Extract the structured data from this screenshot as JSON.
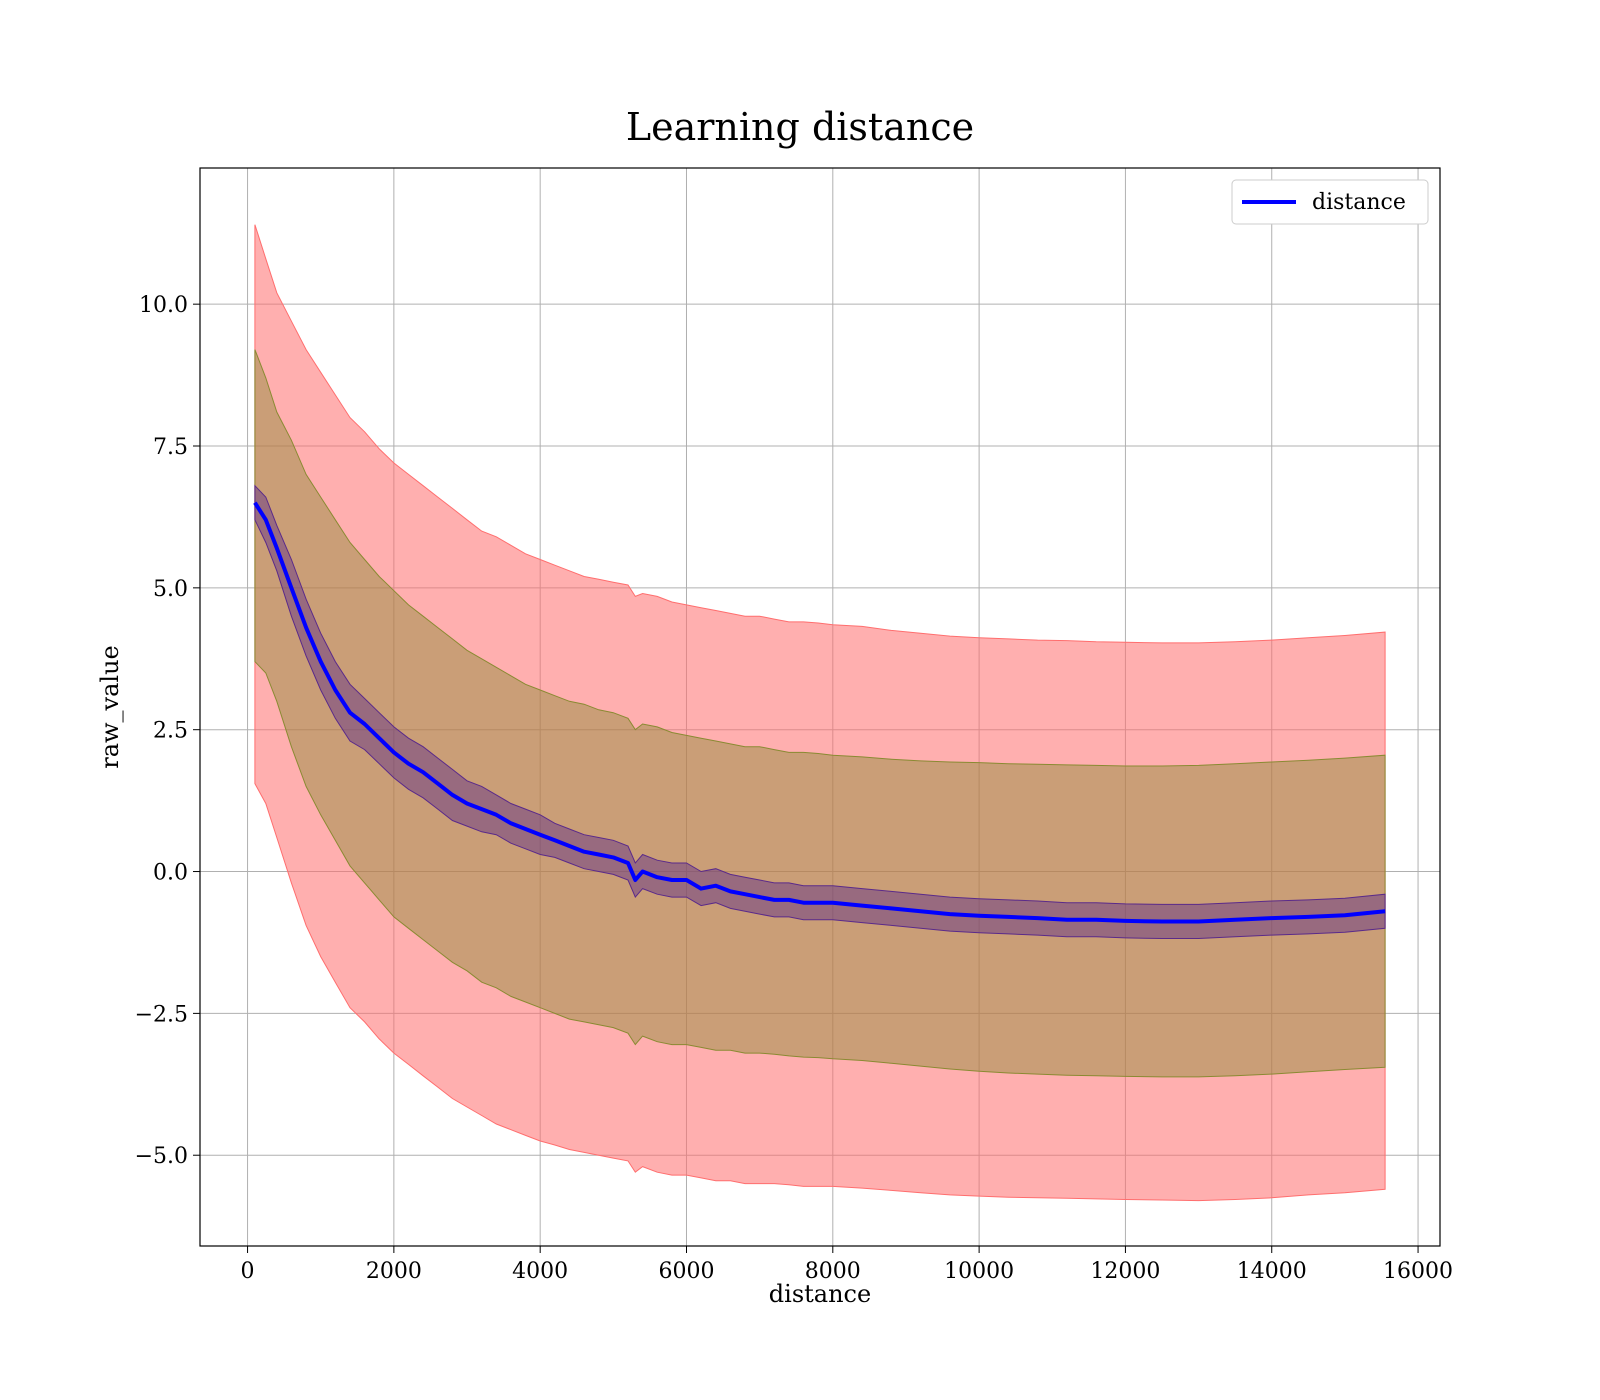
{
  "chart_data": {
    "type": "line",
    "title": "Learning distance",
    "xlabel": "distance",
    "ylabel": "raw_value",
    "xlim": [
      -650,
      16300
    ],
    "ylim": [
      -6.6,
      12.4
    ],
    "xticks": [
      0,
      2000,
      4000,
      6000,
      8000,
      10000,
      12000,
      14000,
      16000
    ],
    "xtick_labels": [
      "0",
      "2000",
      "4000",
      "6000",
      "8000",
      "10000",
      "12000",
      "14000",
      "16000"
    ],
    "yticks": [
      -5.0,
      -2.5,
      0.0,
      2.5,
      5.0,
      7.5,
      10.0
    ],
    "ytick_labels": [
      "−5.0",
      "−2.5",
      "0.0",
      "2.5",
      "5.0",
      "7.5",
      "10.0"
    ],
    "grid": true,
    "legend": {
      "position": "top-right",
      "entries": [
        "distance"
      ]
    },
    "colors": {
      "line": "#0000ff",
      "band_outer": "#ff6e6e",
      "band_middle": "#8a8a32",
      "band_inner": "#5a2a8a"
    },
    "series": [
      {
        "name": "distance",
        "x": [
          100,
          250,
          400,
          600,
          800,
          1000,
          1200,
          1400,
          1600,
          1800,
          2000,
          2200,
          2400,
          2600,
          2800,
          3000,
          3200,
          3400,
          3600,
          3800,
          4000,
          4200,
          4400,
          4600,
          4800,
          5000,
          5200,
          5300,
          5400,
          5600,
          5800,
          6000,
          6200,
          6400,
          6600,
          6800,
          7000,
          7200,
          7400,
          7600,
          7800,
          8000,
          8400,
          8800,
          9200,
          9600,
          10000,
          10400,
          10800,
          11200,
          11600,
          12000,
          12500,
          13000,
          13500,
          14000,
          14500,
          15000,
          15550
        ],
        "y": [
          6.5,
          6.2,
          5.7,
          5.0,
          4.3,
          3.7,
          3.2,
          2.8,
          2.6,
          2.35,
          2.1,
          1.9,
          1.75,
          1.55,
          1.35,
          1.2,
          1.1,
          1.0,
          0.85,
          0.75,
          0.65,
          0.55,
          0.45,
          0.35,
          0.3,
          0.25,
          0.15,
          -0.15,
          0.0,
          -0.1,
          -0.15,
          -0.15,
          -0.3,
          -0.25,
          -0.35,
          -0.4,
          -0.45,
          -0.5,
          -0.5,
          -0.55,
          -0.55,
          -0.55,
          -0.6,
          -0.65,
          -0.7,
          -0.75,
          -0.78,
          -0.8,
          -0.82,
          -0.85,
          -0.85,
          -0.87,
          -0.88,
          -0.88,
          -0.85,
          -0.82,
          -0.8,
          -0.77,
          -0.7
        ],
        "outer_upper": [
          11.4,
          10.8,
          10.2,
          9.7,
          9.2,
          8.8,
          8.4,
          8.0,
          7.75,
          7.45,
          7.2,
          7.0,
          6.8,
          6.6,
          6.4,
          6.2,
          6.0,
          5.9,
          5.75,
          5.6,
          5.5,
          5.4,
          5.3,
          5.2,
          5.15,
          5.1,
          5.05,
          4.85,
          4.9,
          4.85,
          4.75,
          4.7,
          4.65,
          4.6,
          4.55,
          4.5,
          4.5,
          4.45,
          4.4,
          4.4,
          4.38,
          4.35,
          4.32,
          4.25,
          4.2,
          4.15,
          4.12,
          4.1,
          4.08,
          4.07,
          4.05,
          4.04,
          4.03,
          4.03,
          4.05,
          4.08,
          4.12,
          4.16,
          4.22
        ],
        "outer_lower": [
          1.55,
          1.2,
          0.6,
          -0.2,
          -0.95,
          -1.5,
          -1.95,
          -2.4,
          -2.65,
          -2.95,
          -3.2,
          -3.4,
          -3.6,
          -3.8,
          -4.0,
          -4.15,
          -4.3,
          -4.45,
          -4.55,
          -4.65,
          -4.75,
          -4.82,
          -4.9,
          -4.95,
          -5.0,
          -5.05,
          -5.1,
          -5.3,
          -5.2,
          -5.3,
          -5.35,
          -5.35,
          -5.4,
          -5.45,
          -5.45,
          -5.5,
          -5.5,
          -5.5,
          -5.52,
          -5.55,
          -5.55,
          -5.55,
          -5.58,
          -5.62,
          -5.66,
          -5.7,
          -5.72,
          -5.74,
          -5.75,
          -5.76,
          -5.77,
          -5.78,
          -5.79,
          -5.8,
          -5.78,
          -5.75,
          -5.7,
          -5.66,
          -5.6
        ],
        "middle_upper": [
          9.2,
          8.7,
          8.1,
          7.6,
          7.0,
          6.6,
          6.2,
          5.8,
          5.5,
          5.2,
          4.95,
          4.7,
          4.5,
          4.3,
          4.1,
          3.9,
          3.75,
          3.6,
          3.45,
          3.3,
          3.2,
          3.1,
          3.0,
          2.95,
          2.85,
          2.8,
          2.7,
          2.5,
          2.6,
          2.55,
          2.45,
          2.4,
          2.35,
          2.3,
          2.25,
          2.2,
          2.2,
          2.15,
          2.1,
          2.1,
          2.08,
          2.05,
          2.02,
          1.98,
          1.95,
          1.93,
          1.92,
          1.9,
          1.89,
          1.88,
          1.87,
          1.86,
          1.86,
          1.87,
          1.9,
          1.93,
          1.96,
          2.0,
          2.05
        ],
        "middle_lower": [
          3.7,
          3.5,
          3.0,
          2.2,
          1.5,
          1.0,
          0.55,
          0.1,
          -0.2,
          -0.5,
          -0.8,
          -1.0,
          -1.2,
          -1.4,
          -1.6,
          -1.75,
          -1.95,
          -2.05,
          -2.2,
          -2.3,
          -2.4,
          -2.5,
          -2.6,
          -2.65,
          -2.7,
          -2.75,
          -2.85,
          -3.05,
          -2.9,
          -3.0,
          -3.05,
          -3.05,
          -3.1,
          -3.15,
          -3.15,
          -3.2,
          -3.2,
          -3.22,
          -3.25,
          -3.27,
          -3.28,
          -3.3,
          -3.33,
          -3.38,
          -3.43,
          -3.48,
          -3.52,
          -3.55,
          -3.57,
          -3.59,
          -3.6,
          -3.61,
          -3.62,
          -3.62,
          -3.6,
          -3.57,
          -3.53,
          -3.49,
          -3.45
        ],
        "inner_upper": [
          6.8,
          6.6,
          6.1,
          5.5,
          4.8,
          4.2,
          3.7,
          3.3,
          3.05,
          2.8,
          2.55,
          2.35,
          2.2,
          2.0,
          1.8,
          1.6,
          1.5,
          1.35,
          1.2,
          1.1,
          1.0,
          0.85,
          0.75,
          0.65,
          0.6,
          0.55,
          0.45,
          0.15,
          0.3,
          0.2,
          0.15,
          0.15,
          0.0,
          0.05,
          -0.05,
          -0.1,
          -0.15,
          -0.2,
          -0.2,
          -0.25,
          -0.25,
          -0.25,
          -0.3,
          -0.35,
          -0.4,
          -0.45,
          -0.48,
          -0.5,
          -0.52,
          -0.55,
          -0.55,
          -0.57,
          -0.58,
          -0.58,
          -0.55,
          -0.52,
          -0.5,
          -0.47,
          -0.4
        ],
        "inner_lower": [
          6.2,
          5.8,
          5.3,
          4.5,
          3.8,
          3.2,
          2.7,
          2.3,
          2.15,
          1.9,
          1.65,
          1.45,
          1.3,
          1.1,
          0.9,
          0.8,
          0.7,
          0.65,
          0.5,
          0.4,
          0.3,
          0.25,
          0.15,
          0.05,
          0.0,
          -0.05,
          -0.15,
          -0.45,
          -0.3,
          -0.4,
          -0.45,
          -0.45,
          -0.6,
          -0.55,
          -0.65,
          -0.7,
          -0.75,
          -0.8,
          -0.8,
          -0.85,
          -0.85,
          -0.85,
          -0.9,
          -0.95,
          -1.0,
          -1.05,
          -1.08,
          -1.1,
          -1.12,
          -1.15,
          -1.15,
          -1.17,
          -1.18,
          -1.18,
          -1.15,
          -1.12,
          -1.1,
          -1.07,
          -1.0
        ]
      }
    ]
  }
}
